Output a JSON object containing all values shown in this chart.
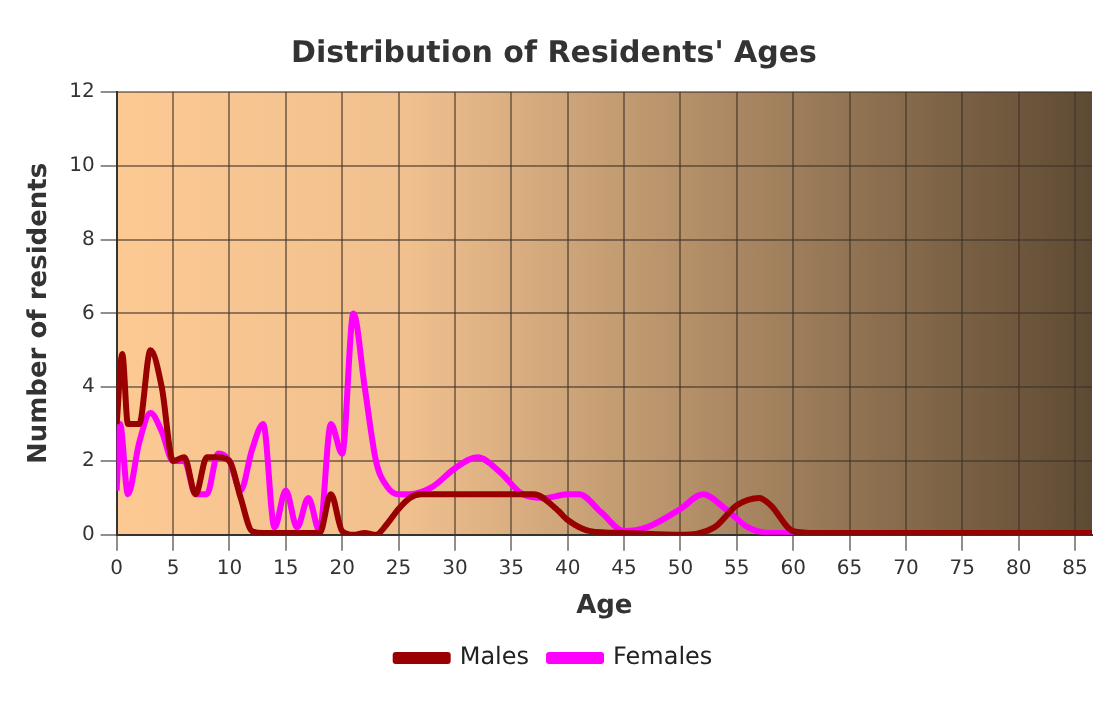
{
  "chart_data": {
    "type": "line",
    "title": "Distribution of Residents' Ages",
    "xlabel": "Age",
    "ylabel": "Number of residents",
    "xlim": [
      0,
      86.5
    ],
    "xticks": [
      0,
      5,
      10,
      15,
      20,
      25,
      30,
      35,
      40,
      45,
      50,
      55,
      60,
      65,
      70,
      75,
      80,
      85
    ],
    "ylim": [
      0,
      12
    ],
    "yticks": [
      0,
      2,
      4,
      6,
      8,
      10,
      12
    ],
    "grid": true,
    "legend": "bottom",
    "marker": "none",
    "line_style": "solid",
    "series": [
      {
        "name": "Males",
        "color": "#990000",
        "x": [
          0,
          0.5,
          1,
          2,
          3,
          4,
          5,
          6,
          7,
          8,
          9,
          10,
          11,
          12,
          13,
          15,
          18,
          19,
          20,
          21,
          22,
          23,
          24,
          25,
          26,
          27,
          28,
          30,
          33,
          35,
          37,
          39,
          40,
          42,
          45,
          50,
          53,
          55,
          57,
          58,
          60,
          62,
          70,
          80,
          86.5
        ],
        "values": [
          3,
          4.9,
          3,
          3,
          5,
          4,
          2,
          2.1,
          1.1,
          2.1,
          2.1,
          2,
          1,
          0.1,
          0.05,
          0.05,
          0.05,
          1.1,
          0.1,
          0,
          0.05,
          0,
          0.3,
          0.7,
          1,
          1.1,
          1.1,
          1.1,
          1.1,
          1.1,
          1.1,
          0.7,
          0.4,
          0.1,
          0.05,
          0,
          0.2,
          0.8,
          1,
          0.8,
          0.1,
          0.05,
          0.05,
          0.05,
          0.05
        ]
      },
      {
        "name": "Females",
        "color": "#ff00ff",
        "x": [
          0,
          0.3,
          1,
          2,
          3,
          4,
          5,
          6,
          7,
          8,
          9,
          10,
          11,
          12,
          13,
          14,
          15,
          16,
          17,
          18,
          19,
          20,
          21,
          22,
          23,
          24,
          25,
          26,
          28,
          30,
          32,
          34,
          36,
          38,
          40,
          41,
          43,
          45,
          47,
          50,
          52,
          54,
          56,
          58,
          60
        ],
        "values": [
          1.2,
          3,
          1.1,
          2.5,
          3.3,
          2.8,
          2,
          2,
          1.1,
          1.1,
          2.2,
          2,
          1.2,
          2.3,
          3,
          0.2,
          1.2,
          0.2,
          1,
          0.1,
          3,
          2.2,
          6,
          4,
          2,
          1.3,
          1.1,
          1.1,
          1.3,
          1.8,
          2.1,
          1.7,
          1.1,
          1,
          1.1,
          1.1,
          0.6,
          0.1,
          0.2,
          0.7,
          1.1,
          0.7,
          0.2,
          0.05,
          0.05
        ]
      }
    ]
  }
}
